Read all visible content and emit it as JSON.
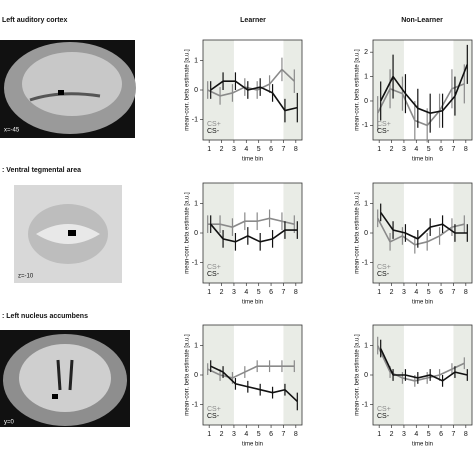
{
  "panels": [
    {
      "label": "Left auditory cortex",
      "slice": "x=-45"
    },
    {
      "label": ": Ventral tegmental area",
      "slice": "z=-10"
    },
    {
      "label": ": Left nucleus accumbens",
      "slice": "y=0"
    }
  ],
  "columns": [
    "Learner",
    "Non-Learner"
  ],
  "chart_data": [
    {
      "type": "line",
      "xlabel": "time bin",
      "ylabel": "mean-corr. beta estimate [a.u.]",
      "x": [
        1,
        2,
        3,
        4,
        5,
        6,
        7,
        8
      ],
      "xlim": [
        0.5,
        8.5
      ],
      "xticks": [
        1,
        2,
        3,
        4,
        5,
        6,
        7,
        8
      ],
      "ylim": [
        -1.7,
        1.7
      ],
      "yticks": [
        -1,
        0,
        1
      ],
      "shaded": [
        [
          0.5,
          3
        ],
        [
          7,
          8.5
        ]
      ],
      "legend": "lower left",
      "series": [
        {
          "name": "CS+",
          "color": "#8a8a8a",
          "values": [
            0,
            -0.2,
            -0.1,
            0.1,
            0,
            0.2,
            0.7,
            0.3
          ],
          "errors": [
            0.3,
            0.3,
            0.3,
            0.3,
            0.3,
            0.3,
            0.4,
            0.4
          ]
        },
        {
          "name": "CS-",
          "color": "#111111",
          "values": [
            0,
            0.3,
            0.3,
            0,
            0.1,
            -0.1,
            -0.7,
            -0.6
          ],
          "errors": [
            0.3,
            0.3,
            0.3,
            0.3,
            0.3,
            0.3,
            0.4,
            0.5
          ]
        }
      ]
    },
    {
      "type": "line",
      "xlabel": "time bin",
      "ylabel": "mean-corr. beta estimate [a.u.]",
      "x": [
        1,
        2,
        3,
        4,
        5,
        6,
        7,
        8
      ],
      "xlim": [
        0.5,
        8.5
      ],
      "xticks": [
        1,
        2,
        3,
        4,
        5,
        6,
        7,
        8
      ],
      "ylim": [
        -1.6,
        2.5
      ],
      "yticks": [
        -1,
        0,
        1,
        2
      ],
      "shaded": [
        [
          0.5,
          3
        ],
        [
          7,
          8.5
        ]
      ],
      "legend": "lower left",
      "series": [
        {
          "name": "CS+",
          "color": "#8a8a8a",
          "values": [
            -0.5,
            0.5,
            0.3,
            -0.8,
            -1,
            -0.4,
            0.5,
            0.7
          ],
          "errors": [
            0.7,
            0.8,
            0.7,
            0.8,
            0.7,
            0.7,
            0.8,
            0.8
          ]
        },
        {
          "name": "CS-",
          "color": "#111111",
          "values": [
            0,
            1,
            0.3,
            -0.3,
            -0.5,
            -0.4,
            0.2,
            1.5
          ],
          "errors": [
            0.8,
            0.9,
            0.8,
            0.8,
            0.8,
            0.7,
            0.8,
            0.8
          ]
        }
      ]
    },
    {
      "type": "line",
      "xlabel": "time bin",
      "ylabel": "mean-corr. beta estimate [a.u.]",
      "x": [
        1,
        2,
        3,
        4,
        5,
        6,
        7,
        8
      ],
      "xlim": [
        0.5,
        8.5
      ],
      "xticks": [
        1,
        2,
        3,
        4,
        5,
        6,
        7,
        8
      ],
      "ylim": [
        -1.7,
        1.7
      ],
      "yticks": [
        -1,
        0,
        1
      ],
      "shaded": [
        [
          0.5,
          3
        ],
        [
          7,
          8.5
        ]
      ],
      "legend": "lower left",
      "series": [
        {
          "name": "CS+",
          "color": "#8a8a8a",
          "values": [
            0.3,
            0.3,
            0.2,
            0.4,
            0.4,
            0.5,
            0.4,
            0.3
          ],
          "errors": [
            0.3,
            0.3,
            0.3,
            0.3,
            0.3,
            0.3,
            0.3,
            0.3
          ]
        },
        {
          "name": "CS-",
          "color": "#111111",
          "values": [
            0.3,
            -0.2,
            -0.3,
            -0.1,
            -0.3,
            -0.2,
            0.1,
            0.1
          ],
          "errors": [
            0.3,
            0.3,
            0.3,
            0.3,
            0.3,
            0.3,
            0.3,
            0.3
          ]
        }
      ]
    },
    {
      "type": "line",
      "xlabel": "time bin",
      "ylabel": "mean-corr. beta estimate [a.u.]",
      "x": [
        1,
        2,
        3,
        4,
        5,
        6,
        7,
        8
      ],
      "xlim": [
        0.5,
        8.5
      ],
      "xticks": [
        1,
        2,
        3,
        4,
        5,
        6,
        7,
        8
      ],
      "ylim": [
        -1.7,
        1.7
      ],
      "yticks": [
        -1,
        0,
        1
      ],
      "shaded": [
        [
          0.5,
          3
        ],
        [
          7,
          8.5
        ]
      ],
      "legend": "lower left",
      "series": [
        {
          "name": "CS+",
          "color": "#8a8a8a",
          "values": [
            0.5,
            -0.3,
            -0.1,
            -0.4,
            -0.3,
            -0.1,
            0.2,
            0.3
          ],
          "errors": [
            0.3,
            0.3,
            0.3,
            0.3,
            0.3,
            0.3,
            0.3,
            0.3
          ]
        },
        {
          "name": "CS-",
          "color": "#111111",
          "values": [
            0.7,
            0.1,
            0,
            -0.2,
            0.2,
            0.3,
            0,
            0
          ],
          "errors": [
            0.3,
            0.3,
            0.3,
            0.3,
            0.3,
            0.3,
            0.3,
            0.3
          ]
        }
      ]
    },
    {
      "type": "line",
      "xlabel": "time bin",
      "ylabel": "mean-corr. beta estimate [a.u.]",
      "x": [
        1,
        2,
        3,
        4,
        5,
        6,
        7,
        8
      ],
      "xlim": [
        0.5,
        8.5
      ],
      "xticks": [
        1,
        2,
        3,
        4,
        5,
        6,
        7,
        8
      ],
      "ylim": [
        -1.7,
        1.7
      ],
      "yticks": [
        -1,
        0,
        1
      ],
      "shaded": [
        [
          0.5,
          3
        ],
        [
          7,
          8.5
        ]
      ],
      "legend": "lower left",
      "series": [
        {
          "name": "CS+",
          "color": "#8a8a8a",
          "values": [
            0.2,
            0,
            -0.1,
            0.1,
            0.3,
            0.3,
            0.3,
            0.3
          ],
          "errors": [
            0.2,
            0.2,
            0.2,
            0.2,
            0.2,
            0.2,
            0.2,
            0.2
          ]
        },
        {
          "name": "CS-",
          "color": "#111111",
          "values": [
            0.3,
            0.1,
            -0.3,
            -0.4,
            -0.5,
            -0.6,
            -0.5,
            -0.9
          ],
          "errors": [
            0.2,
            0.2,
            0.2,
            0.2,
            0.2,
            0.2,
            0.2,
            0.3
          ]
        }
      ]
    },
    {
      "type": "line",
      "xlabel": "time bin",
      "ylabel": "mean-corr. beta estimate [a.u.]",
      "x": [
        1,
        2,
        3,
        4,
        5,
        6,
        7,
        8
      ],
      "xlim": [
        0.5,
        8.5
      ],
      "xticks": [
        1,
        2,
        3,
        4,
        5,
        6,
        7,
        8
      ],
      "ylim": [
        -1.7,
        1.7
      ],
      "yticks": [
        -1,
        0,
        1
      ],
      "shaded": [
        [
          0.5,
          3
        ],
        [
          7,
          8.5
        ]
      ],
      "legend": "lower left",
      "series": [
        {
          "name": "CS+",
          "color": "#8a8a8a",
          "values": [
            1,
            0.1,
            -0.1,
            -0.2,
            -0.1,
            0,
            0.2,
            0.4
          ],
          "errors": [
            0.3,
            0.2,
            0.2,
            0.2,
            0.2,
            0.2,
            0.2,
            0.2
          ]
        },
        {
          "name": "CS-",
          "color": "#111111",
          "values": [
            0.9,
            0,
            0,
            -0.1,
            0,
            -0.2,
            0.1,
            0
          ],
          "errors": [
            0.3,
            0.2,
            0.2,
            0.2,
            0.2,
            0.2,
            0.2,
            0.2
          ]
        }
      ]
    }
  ]
}
